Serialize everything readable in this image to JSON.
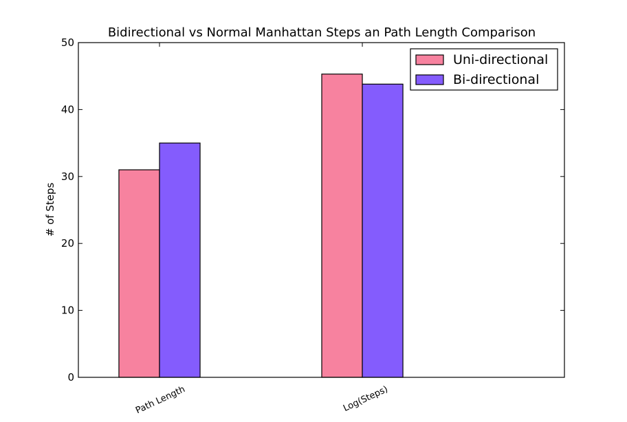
{
  "chart_data": {
    "type": "bar",
    "title": "Bidirectional vs Normal Manhattan Steps an Path Length Comparison",
    "xlabel": "",
    "ylabel": "# of Steps",
    "categories": [
      "Path Length",
      "Log(Steps)"
    ],
    "series": [
      {
        "name": "Uni-directional",
        "color": "#f7829f",
        "values": [
          31.0,
          45.3
        ]
      },
      {
        "name": "Bi-directional",
        "color": "#845cfd",
        "values": [
          35.0,
          43.8
        ]
      }
    ],
    "ylim": [
      0,
      50
    ],
    "yticks": [
      0,
      10,
      20,
      30,
      40,
      50
    ],
    "grid": false,
    "legend_position": "top-right"
  }
}
